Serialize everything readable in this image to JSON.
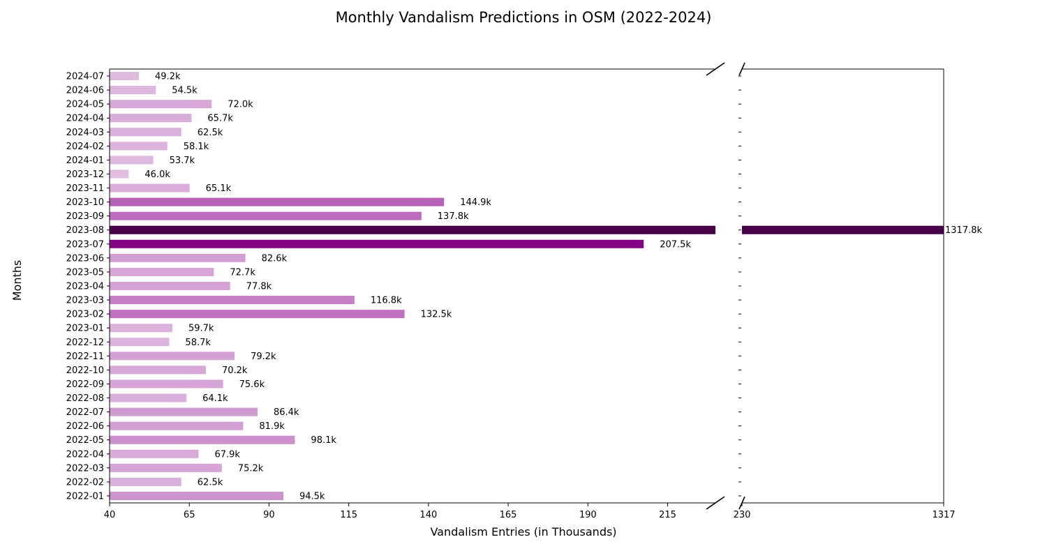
{
  "chart_data": {
    "type": "bar",
    "orientation": "horizontal",
    "title": "Monthly Vandalism Predictions in OSM (2022-2024)",
    "xlabel": "Vandalism Entries (in Thousands)",
    "ylabel": "Months",
    "broken_x_axis": true,
    "segments": [
      {
        "xlim": [
          40,
          230
        ],
        "xticks": [
          40,
          65,
          90,
          115,
          140,
          165,
          190,
          215
        ]
      },
      {
        "xlim": [
          230,
          1317
        ],
        "xticks": [
          230,
          1317
        ]
      }
    ],
    "categories": [
      "2022-01",
      "2022-02",
      "2022-03",
      "2022-04",
      "2022-05",
      "2022-06",
      "2022-07",
      "2022-08",
      "2022-09",
      "2022-10",
      "2022-11",
      "2022-12",
      "2023-01",
      "2023-02",
      "2023-03",
      "2023-04",
      "2023-05",
      "2023-06",
      "2023-07",
      "2023-08",
      "2023-09",
      "2023-10",
      "2023-11",
      "2023-12",
      "2024-01",
      "2024-02",
      "2024-03",
      "2024-04",
      "2024-05",
      "2024-06",
      "2024-07"
    ],
    "values": [
      94.5,
      62.5,
      75.2,
      67.9,
      98.1,
      81.9,
      86.4,
      64.1,
      75.6,
      70.2,
      79.2,
      58.7,
      59.7,
      132.5,
      116.8,
      77.8,
      72.7,
      82.6,
      207.5,
      1317.8,
      137.8,
      144.9,
      65.1,
      46.0,
      53.7,
      58.1,
      62.5,
      65.7,
      72.0,
      54.5,
      49.2
    ],
    "data_labels": [
      "94.5k",
      "62.5k",
      "75.2k",
      "67.9k",
      "98.1k",
      "81.9k",
      "86.4k",
      "64.1k",
      "75.6k",
      "70.2k",
      "79.2k",
      "58.7k",
      "59.7k",
      "132.5k",
      "116.8k",
      "77.8k",
      "72.7k",
      "82.6k",
      "207.5k",
      "1317.8k",
      "137.8k",
      "144.9k",
      "65.1k",
      "46.0k",
      "53.7k",
      "58.1k",
      "62.5k",
      "65.7k",
      "72.0k",
      "54.5k",
      "49.2k"
    ],
    "color_map": "purple gradient by value",
    "grid": false,
    "legend": "none"
  }
}
